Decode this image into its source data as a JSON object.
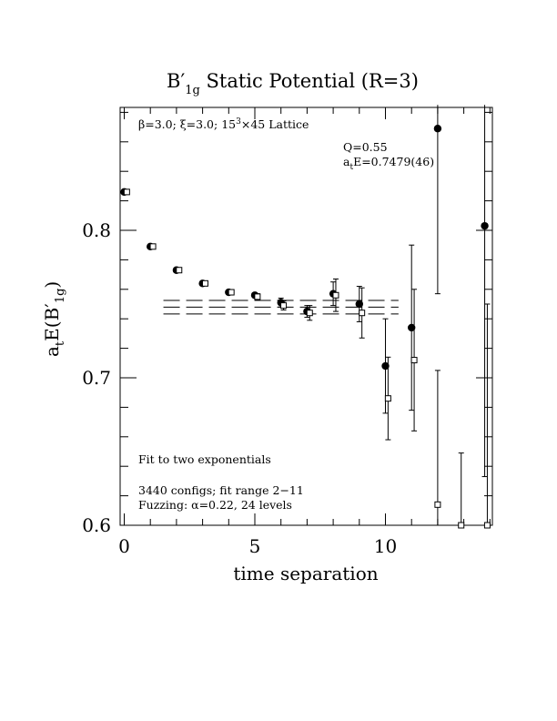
{
  "chart_data": {
    "type": "scatter",
    "title": "B′1g Static Potential (R=3)",
    "title_main": "B",
    "title_prime": "′",
    "title_sub": "1g",
    "title_rest": " Static Potential (R=3)",
    "xlabel": "time separation",
    "ylabel": "a",
    "ylabel_sub": "t",
    "ylabel_rest": "E(B",
    "ylabel_prime": "′",
    "ylabel_sub2": "1g",
    "ylabel_close": ")",
    "xlim": [
      0,
      14
    ],
    "ylim": [
      0.6,
      0.885
    ],
    "xticks": [
      "0",
      "5",
      "10"
    ],
    "yticks": [
      "0.6",
      "0.7",
      "0.8"
    ],
    "annotations": {
      "lattice_beta": "β=3.0; ",
      "lattice_xi": "ξ=3.0; ",
      "lattice_size": "15",
      "lattice_exp": "3",
      "lattice_rest": "×45 Lattice",
      "q_value": "Q=0.55",
      "energy_prefix": "a",
      "energy_sub": "t",
      "energy_value": "E=0.7479(46)",
      "fit_type": "Fit to two exponentials",
      "configs": "3440 configs; fit range 2−11",
      "fuzzing": "Fuzzing: α=0.22, 24 levels"
    },
    "fit": {
      "value": 0.7479,
      "error": 0.0046,
      "x_range": [
        1.5,
        10.5
      ]
    },
    "series": [
      {
        "marker": "filled-circle",
        "points": [
          {
            "x": 0,
            "y": 0.826,
            "err": 0.001
          },
          {
            "x": 1,
            "y": 0.789,
            "err": 0.001
          },
          {
            "x": 2,
            "y": 0.773,
            "err": 0.001
          },
          {
            "x": 3,
            "y": 0.764,
            "err": 0.001
          },
          {
            "x": 4,
            "y": 0.758,
            "err": 0.001
          },
          {
            "x": 5,
            "y": 0.756,
            "err": 0.001
          },
          {
            "x": 6,
            "y": 0.751,
            "err": 0.003
          },
          {
            "x": 7,
            "y": 0.745,
            "err": 0.004
          },
          {
            "x": 8,
            "y": 0.757,
            "err": 0.008
          },
          {
            "x": 9,
            "y": 0.75,
            "err": 0.012
          },
          {
            "x": 10,
            "y": 0.708,
            "err": 0.032
          },
          {
            "x": 11,
            "y": 0.734,
            "err": 0.056
          },
          {
            "x": 12,
            "y": 0.869,
            "err": 0.112
          },
          {
            "x": 13.8,
            "y": 0.803,
            "err": 0.17
          }
        ]
      },
      {
        "marker": "open-square",
        "points": [
          {
            "x": 0.1,
            "y": 0.826,
            "err": 0.001
          },
          {
            "x": 1.1,
            "y": 0.789,
            "err": 0.001
          },
          {
            "x": 2.1,
            "y": 0.773,
            "err": 0.001
          },
          {
            "x": 3.1,
            "y": 0.764,
            "err": 0.001
          },
          {
            "x": 4.1,
            "y": 0.758,
            "err": 0.001
          },
          {
            "x": 5.1,
            "y": 0.755,
            "err": 0.002
          },
          {
            "x": 6.1,
            "y": 0.749,
            "err": 0.003
          },
          {
            "x": 7.1,
            "y": 0.744,
            "err": 0.005
          },
          {
            "x": 8.1,
            "y": 0.756,
            "err": 0.011
          },
          {
            "x": 9.1,
            "y": 0.744,
            "err": 0.017
          },
          {
            "x": 10.1,
            "y": 0.686,
            "err": 0.028
          },
          {
            "x": 11.1,
            "y": 0.712,
            "err": 0.048
          },
          {
            "x": 12.0,
            "y": 0.614,
            "err": 0.091
          },
          {
            "x": 12.9,
            "y": 0.6,
            "err": 0.049
          },
          {
            "x": 13.9,
            "y": 0.6,
            "err": 0.15
          }
        ]
      }
    ]
  }
}
